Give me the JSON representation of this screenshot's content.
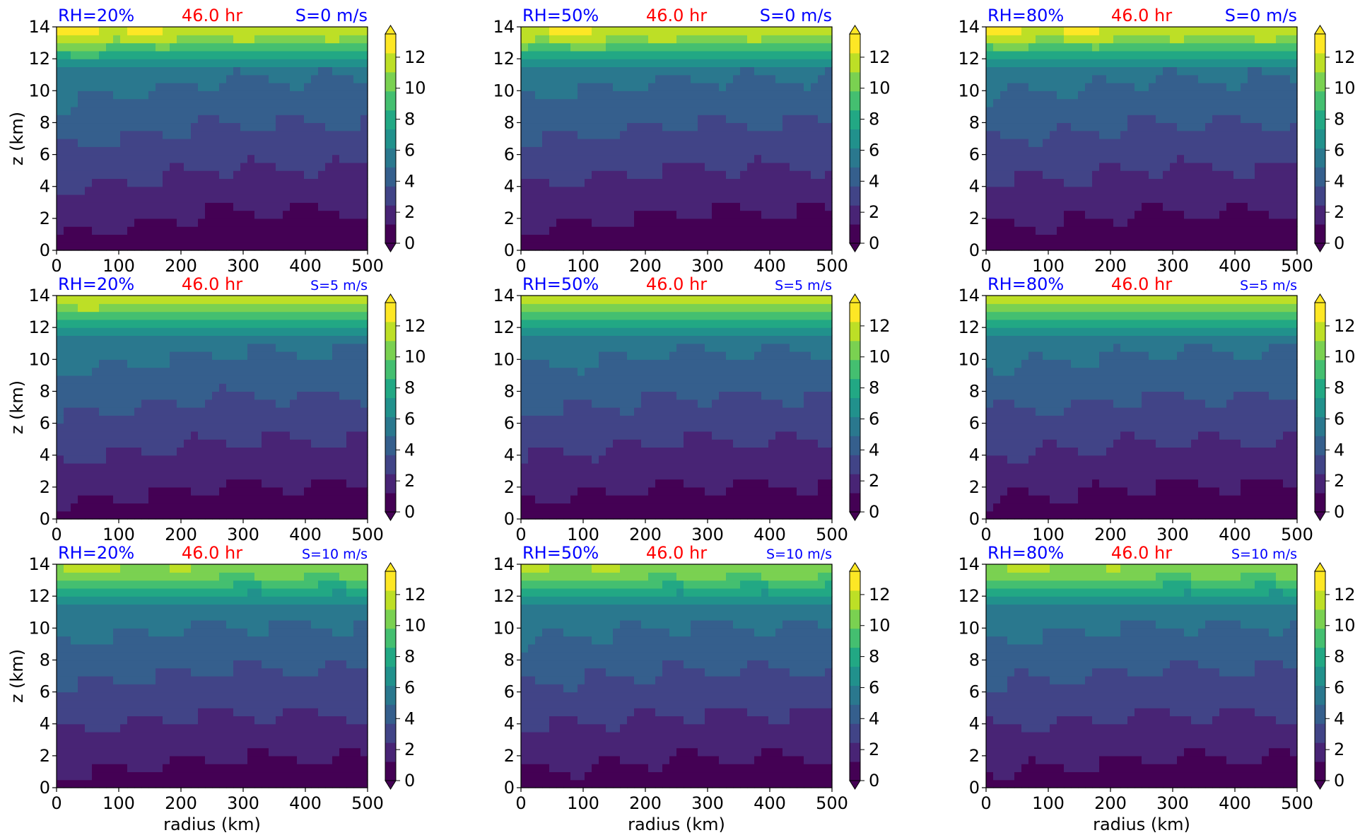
{
  "colors": {
    "viridis_levels": [
      "#440154",
      "#482475",
      "#414487",
      "#355f8d",
      "#2a788e",
      "#21918c",
      "#22a884",
      "#44bf70",
      "#7ad151",
      "#bddf26",
      "#fde725"
    ],
    "title_left": "#0000ff",
    "title_center": "#ff0000",
    "title_right": "#0000ff"
  },
  "chart_data": [
    {
      "type": "heatmap",
      "title_left": "RH=20%",
      "title_center": "46.0 hr",
      "title_right": "S=0 m/s",
      "rh": 20,
      "shear": 0,
      "xlabel": "",
      "ylabel": "z (km)",
      "xlim": [
        0,
        500
      ],
      "ylim": [
        0,
        14
      ],
      "x_ticks": [
        "0",
        "100",
        "200",
        "300",
        "400",
        "500"
      ],
      "y_ticks": [
        "0",
        "2",
        "4",
        "6",
        "8",
        "10",
        "12",
        "14"
      ],
      "colorbar_ticks": [
        "0",
        "2",
        "4",
        "6",
        "8",
        "10",
        "12"
      ],
      "colorbar_range": [
        0,
        13.5
      ],
      "extend": "both"
    },
    {
      "type": "heatmap",
      "title_left": "RH=50%",
      "title_center": "46.0 hr",
      "title_right": "S=0 m/s",
      "rh": 50,
      "shear": 0,
      "xlabel": "",
      "ylabel": "",
      "xlim": [
        0,
        500
      ],
      "ylim": [
        0,
        14
      ],
      "x_ticks": [
        "0",
        "100",
        "200",
        "300",
        "400",
        "500"
      ],
      "y_ticks": [
        "0",
        "2",
        "4",
        "6",
        "8",
        "10",
        "12",
        "14"
      ],
      "colorbar_ticks": [
        "0",
        "2",
        "4",
        "6",
        "8",
        "10",
        "12"
      ],
      "colorbar_range": [
        0,
        13.5
      ],
      "extend": "both"
    },
    {
      "type": "heatmap",
      "title_left": "RH=80%",
      "title_center": "46.0 hr",
      "title_right": "S=0 m/s",
      "rh": 80,
      "shear": 0,
      "xlabel": "",
      "ylabel": "",
      "xlim": [
        0,
        500
      ],
      "ylim": [
        0,
        14
      ],
      "x_ticks": [
        "0",
        "100",
        "200",
        "300",
        "400",
        "500"
      ],
      "y_ticks": [
        "0",
        "2",
        "4",
        "6",
        "8",
        "10",
        "12",
        "14"
      ],
      "colorbar_ticks": [
        "0",
        "2",
        "4",
        "6",
        "8",
        "10",
        "12"
      ],
      "colorbar_range": [
        0,
        13.5
      ],
      "extend": "both"
    },
    {
      "type": "heatmap",
      "title_left": "RH=20%",
      "title_center": "46.0 hr",
      "title_right": "S=5 m/s",
      "rh": 20,
      "shear": 5,
      "xlabel": "",
      "ylabel": "z (km)",
      "xlim": [
        0,
        500
      ],
      "ylim": [
        0,
        14
      ],
      "x_ticks": [
        "0",
        "100",
        "200",
        "300",
        "400",
        "500"
      ],
      "y_ticks": [
        "0",
        "2",
        "4",
        "6",
        "8",
        "10",
        "12",
        "14"
      ],
      "colorbar_ticks": [
        "0",
        "2",
        "4",
        "6",
        "8",
        "10",
        "12"
      ],
      "colorbar_range": [
        0,
        13.5
      ],
      "extend": "both"
    },
    {
      "type": "heatmap",
      "title_left": "RH=50%",
      "title_center": "46.0 hr",
      "title_right": "S=5 m/s",
      "rh": 50,
      "shear": 5,
      "xlabel": "",
      "ylabel": "",
      "xlim": [
        0,
        500
      ],
      "ylim": [
        0,
        14
      ],
      "x_ticks": [
        "0",
        "100",
        "200",
        "300",
        "400",
        "500"
      ],
      "y_ticks": [
        "0",
        "2",
        "4",
        "6",
        "8",
        "10",
        "12",
        "14"
      ],
      "colorbar_ticks": [
        "0",
        "2",
        "4",
        "6",
        "8",
        "10",
        "12"
      ],
      "colorbar_range": [
        0,
        13.5
      ],
      "extend": "both"
    },
    {
      "type": "heatmap",
      "title_left": "RH=80%",
      "title_center": "46.0 hr",
      "title_right": "S=5 m/s",
      "rh": 80,
      "shear": 5,
      "xlabel": "",
      "ylabel": "",
      "xlim": [
        0,
        500
      ],
      "ylim": [
        0,
        14
      ],
      "x_ticks": [
        "0",
        "100",
        "200",
        "300",
        "400",
        "500"
      ],
      "y_ticks": [
        "0",
        "2",
        "4",
        "6",
        "8",
        "10",
        "12",
        "14"
      ],
      "colorbar_ticks": [
        "0",
        "2",
        "4",
        "6",
        "8",
        "10",
        "12"
      ],
      "colorbar_range": [
        0,
        13.5
      ],
      "extend": "both"
    },
    {
      "type": "heatmap",
      "title_left": "RH=20%",
      "title_center": "46.0 hr",
      "title_right": "S=10 m/s",
      "rh": 20,
      "shear": 10,
      "xlabel": "radius (km)",
      "ylabel": "z (km)",
      "xlim": [
        0,
        500
      ],
      "ylim": [
        0,
        14
      ],
      "x_ticks": [
        "0",
        "100",
        "200",
        "300",
        "400",
        "500"
      ],
      "y_ticks": [
        "0",
        "2",
        "4",
        "6",
        "8",
        "10",
        "12",
        "14"
      ],
      "colorbar_ticks": [
        "0",
        "2",
        "4",
        "6",
        "8",
        "10",
        "12"
      ],
      "colorbar_range": [
        0,
        13.5
      ],
      "extend": "both"
    },
    {
      "type": "heatmap",
      "title_left": "RH=50%",
      "title_center": "46.0 hr",
      "title_right": "S=10 m/s",
      "rh": 50,
      "shear": 10,
      "xlabel": "radius (km)",
      "ylabel": "",
      "xlim": [
        0,
        500
      ],
      "ylim": [
        0,
        14
      ],
      "x_ticks": [
        "0",
        "100",
        "200",
        "300",
        "400",
        "500"
      ],
      "y_ticks": [
        "0",
        "2",
        "4",
        "6",
        "8",
        "10",
        "12",
        "14"
      ],
      "colorbar_ticks": [
        "0",
        "2",
        "4",
        "6",
        "8",
        "10",
        "12"
      ],
      "colorbar_range": [
        0,
        13.5
      ],
      "extend": "both"
    },
    {
      "type": "heatmap",
      "title_left": "RH=80%",
      "title_center": "46.0 hr",
      "title_right": "S=10 m/s",
      "rh": 80,
      "shear": 10,
      "xlabel": "radius (km)",
      "ylabel": "",
      "xlim": [
        0,
        500
      ],
      "ylim": [
        0,
        14
      ],
      "x_ticks": [
        "0",
        "100",
        "200",
        "300",
        "400",
        "500"
      ],
      "y_ticks": [
        "0",
        "2",
        "4",
        "6",
        "8",
        "10",
        "12",
        "14"
      ],
      "colorbar_ticks": [
        "0",
        "2",
        "4",
        "6",
        "8",
        "10",
        "12"
      ],
      "colorbar_range": [
        0,
        13.5
      ],
      "extend": "both"
    }
  ]
}
